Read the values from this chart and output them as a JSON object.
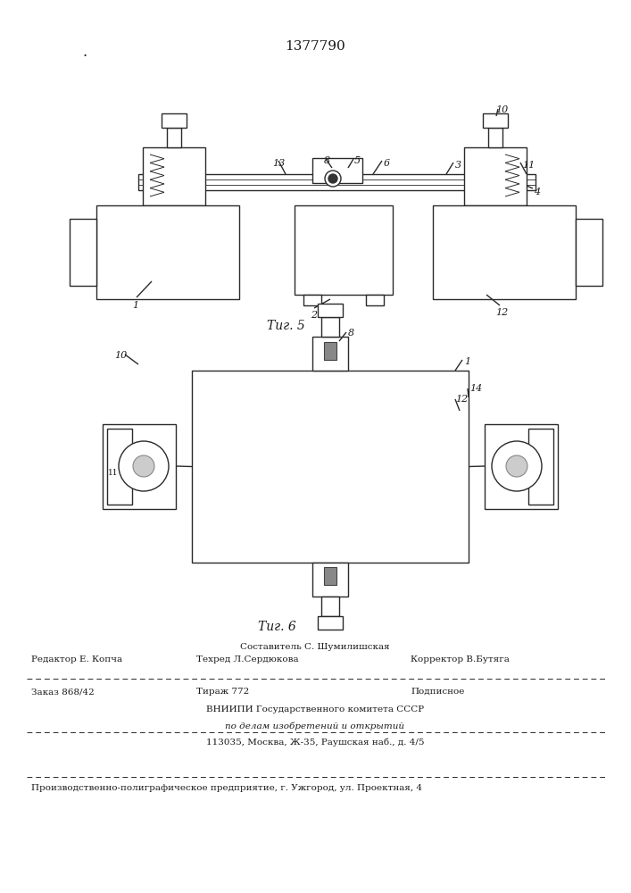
{
  "title_number": "1377790",
  "fig5_label": "Τиг. 5",
  "fig6_label": "Τиг. 6",
  "footer_line1_center": "Составитель С. Шумилишская",
  "footer_editor": "Редактор Е. Копча",
  "footer_tehred": "Техред Л.Сердюкова",
  "footer_corrector": "Корректор В.Бутяга",
  "footer_order": "Заказ 868/42",
  "footer_tirazh": "Тираж 772",
  "footer_podp": "Подписное",
  "footer_vniipd": "ВНИИПИ Государственного комитета СССР",
  "footer_po_delam": "по делам изобретений и открытий",
  "footer_address": "113035, Москва, Ж-35, Раушская наб., д. 4/5",
  "footer_bottom": "Производственно-полиграфическое предприятие, г. Ужгород, ул. Проектная, 4",
  "bg_color": "#ffffff",
  "line_color": "#2a2a2a",
  "text_color": "#1a1a1a"
}
